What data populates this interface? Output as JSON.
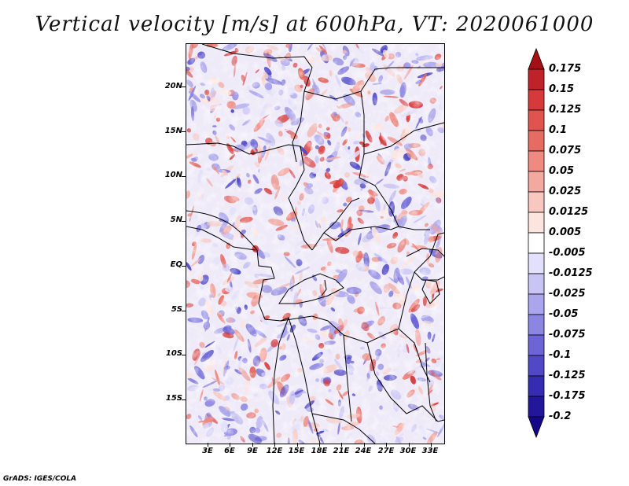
{
  "title": "Vertical velocity [m/s] at 600hPa, VT: 2020061000",
  "lat_labels": [
    "20N",
    "15N",
    "10N",
    "5N",
    "EQ",
    "5S",
    "10S",
    "15S"
  ],
  "lon_labels": [
    "3E",
    "6E",
    "9E",
    "12E",
    "15E",
    "18E",
    "21E",
    "24E",
    "27E",
    "30E",
    "33E"
  ],
  "colorbar": {
    "levels": [
      "0.175",
      "0.15",
      "0.125",
      "0.1",
      "0.075",
      "0.05",
      "0.025",
      "0.0125",
      "0.005",
      "-0.005",
      "-0.0125",
      "-0.025",
      "-0.05",
      "-0.075",
      "-0.1",
      "-0.125",
      "-0.175",
      "-0.2"
    ],
    "colors": [
      "#a50f15",
      "#c0222a",
      "#d6393a",
      "#e0534e",
      "#e66b63",
      "#ee8a80",
      "#f4a9a0",
      "#f8c8c0",
      "#fce4df",
      "#ffffff",
      "#e2e0fa",
      "#c8c4f4",
      "#aaa5ec",
      "#8c85e2",
      "#6d65d6",
      "#5048c6",
      "#352cb2",
      "#22169a",
      "#150888"
    ]
  },
  "credit": "GrADS: IGES/COLA"
}
